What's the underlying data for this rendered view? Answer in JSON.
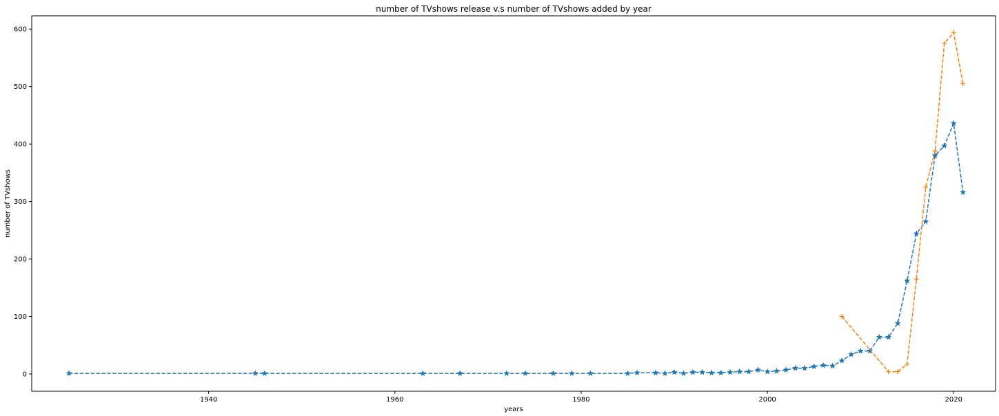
{
  "chart_data": {
    "type": "line",
    "title": "number of TVshows release v.s number of TVshows added by year",
    "xlabel": "years",
    "ylabel": "number of TVshows",
    "xlim": [
      1921,
      2024.5
    ],
    "ylim": [
      -30,
      623
    ],
    "xticks": [
      1940,
      1960,
      1980,
      2000,
      2020
    ],
    "yticks": [
      0,
      100,
      200,
      300,
      400,
      500,
      600
    ],
    "grid": false,
    "colors": {
      "series1": "#1f77b4",
      "series2": "#ff7f0e"
    },
    "series": [
      {
        "marker": "star",
        "linestyle": "dashed",
        "x": [
          1925,
          1945,
          1946,
          1963,
          1967,
          1972,
          1974,
          1977,
          1979,
          1981,
          1985,
          1986,
          1988,
          1989,
          1990,
          1991,
          1992,
          1993,
          1994,
          1995,
          1996,
          1997,
          1998,
          1999,
          2000,
          2001,
          2002,
          2003,
          2004,
          2005,
          2006,
          2007,
          2008,
          2009,
          2010,
          2011,
          2012,
          2013,
          2014,
          2015,
          2016,
          2017,
          2018,
          2019,
          2020,
          2021
        ],
        "y": [
          1,
          1,
          1,
          1,
          1,
          1,
          1,
          1,
          1,
          1,
          1,
          2,
          2,
          1,
          3,
          1,
          3,
          3,
          2,
          2,
          3,
          4,
          4,
          7,
          4,
          5,
          7,
          10,
          10,
          13,
          15,
          14,
          23,
          34,
          40,
          40,
          64,
          64,
          88,
          162,
          244,
          265,
          380,
          397,
          436,
          316
        ]
      },
      {
        "marker": "plus",
        "linestyle": "dashed",
        "x": [
          2008,
          2013,
          2014,
          2015,
          2016,
          2017,
          2018,
          2019,
          2020,
          2021
        ],
        "y": [
          100,
          4,
          4,
          17,
          165,
          325,
          388,
          575,
          594,
          505
        ]
      }
    ]
  }
}
